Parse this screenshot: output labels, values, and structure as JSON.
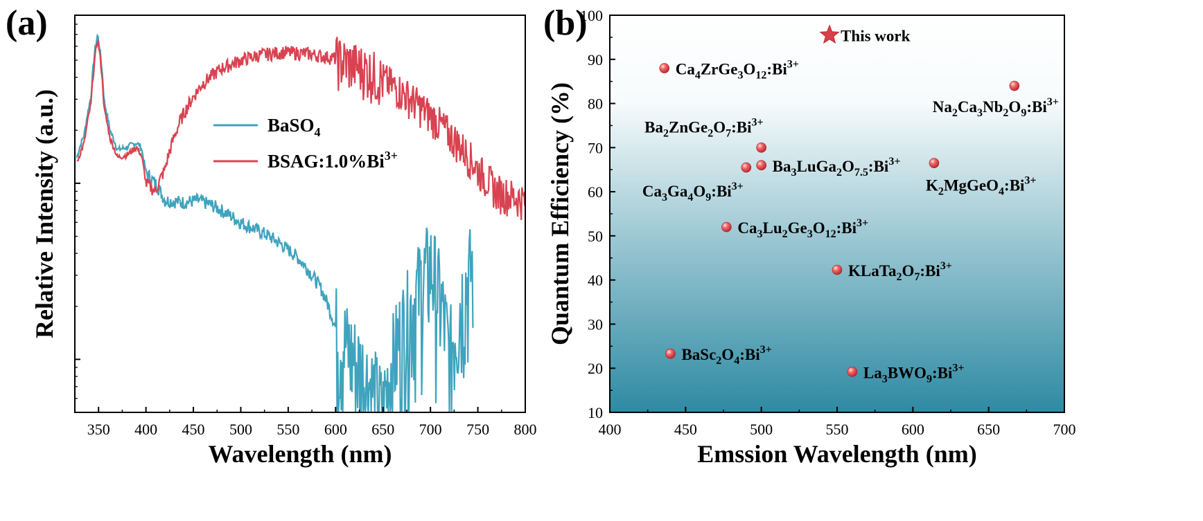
{
  "panels": {
    "a": {
      "letter": "(a)",
      "xlabel": "Wavelength (nm)",
      "ylabel": "Relative Intensity (a.u.)",
      "legend": [
        {
          "name": "BaSO",
          "sub": "4",
          "sup": "",
          "color": "#3fa3bd"
        },
        {
          "name": "BSAG:1.0%Bi",
          "sub": "",
          "sup": "3+",
          "color": "#d94351"
        }
      ]
    },
    "b": {
      "letter": "(b)",
      "xlabel": "Emssion Wavelength (nm)",
      "ylabel": "Quantum Efficiency (%)"
    }
  },
  "chart_data": [
    {
      "type": "line",
      "xlabel": "Wavelength (nm)",
      "ylabel": "Relative Intensity (a.u.)",
      "xlim": [
        325,
        800
      ],
      "ylim": [
        0,
        10
      ],
      "y_scale": "log",
      "y_tick_labels": false,
      "x_ticks": [
        350,
        400,
        450,
        500,
        550,
        600,
        650,
        700,
        750,
        800
      ],
      "grid": false,
      "legend_position": "top-right",
      "series": [
        {
          "name": "BaSO4",
          "color": "#3fa3bd",
          "x": [
            327,
            335,
            342,
            346,
            349,
            352,
            356,
            362,
            370,
            380,
            390,
            395,
            400,
            410,
            420,
            440,
            455,
            470,
            500,
            530,
            560,
            585,
            600,
            620,
            650,
            680,
            700,
            720,
            745
          ],
          "y": [
            1.4,
            1.9,
            3.1,
            5.6,
            7.0,
            5.4,
            2.9,
            2.0,
            1.55,
            1.6,
            1.7,
            1.6,
            1.15,
            1.0,
            0.8,
            0.78,
            0.8,
            0.75,
            0.6,
            0.5,
            0.38,
            0.25,
            0.15,
            0.1,
            0.05,
            0.2,
            0.35,
            0.1,
            0.35
          ]
        },
        {
          "name": "BSAG:1.0%Bi3+",
          "color": "#d94351",
          "x": [
            327,
            335,
            342,
            346,
            349,
            352,
            356,
            362,
            370,
            380,
            390,
            395,
            400,
            410,
            420,
            440,
            460,
            480,
            500,
            520,
            545,
            570,
            600,
            630,
            660,
            690,
            720,
            750,
            770,
            800
          ],
          "y": [
            1.3,
            1.7,
            2.8,
            5.0,
            6.6,
            5.0,
            2.6,
            1.8,
            1.4,
            1.45,
            1.6,
            1.45,
            1.0,
            0.9,
            1.2,
            2.5,
            3.7,
            4.5,
            5.0,
            5.35,
            5.55,
            5.45,
            5.1,
            4.5,
            3.6,
            2.7,
            1.9,
            1.2,
            0.9,
            0.8
          ]
        }
      ]
    },
    {
      "type": "scatter",
      "xlabel": "Emssion Wavelength (nm)",
      "ylabel": "Quantum Efficiency (%)",
      "xlim": [
        400,
        700
      ],
      "ylim": [
        10,
        100
      ],
      "x_ticks": [
        400,
        450,
        500,
        550,
        600,
        650,
        700
      ],
      "y_ticks": [
        10,
        20,
        30,
        40,
        50,
        60,
        70,
        80,
        90,
        100
      ],
      "grid": false,
      "background": "gradient white (top) to teal (bottom)",
      "points": [
        {
          "label": "This work",
          "label_parts": [
            [
              "This work",
              "n"
            ]
          ],
          "x": 545,
          "y": 95.5,
          "marker": "star",
          "label_side": "right"
        },
        {
          "label": "Ca4ZrGe3O12:Bi3+",
          "label_parts": [
            [
              "Ca",
              "n"
            ],
            [
              "4",
              "sub"
            ],
            [
              "ZrGe",
              "n"
            ],
            [
              "3",
              "sub"
            ],
            [
              "O",
              "n"
            ],
            [
              "12",
              "sub"
            ],
            [
              ":Bi",
              "n"
            ],
            [
              "3+",
              "sup"
            ]
          ],
          "x": 436,
          "y": 88,
          "marker": "sphere",
          "label_side": "right"
        },
        {
          "label": "Na2Ca3Nb2O9:Bi3+",
          "label_parts": [
            [
              "Na",
              "n"
            ],
            [
              "2",
              "sub"
            ],
            [
              "Ca",
              "n"
            ],
            [
              "3",
              "sub"
            ],
            [
              "Nb",
              "n"
            ],
            [
              "2",
              "sub"
            ],
            [
              "O",
              "n"
            ],
            [
              "9",
              "sub"
            ],
            [
              ":Bi",
              "n"
            ],
            [
              "3+",
              "sup"
            ]
          ],
          "x": 667,
          "y": 84,
          "marker": "sphere",
          "label_side": "below-left"
        },
        {
          "label": "Ba2ZnGe2O7:Bi3+",
          "label_parts": [
            [
              "Ba",
              "n"
            ],
            [
              "2",
              "sub"
            ],
            [
              "ZnGe",
              "n"
            ],
            [
              "2",
              "sub"
            ],
            [
              "O",
              "n"
            ],
            [
              "7",
              "sub"
            ],
            [
              ":Bi",
              "n"
            ],
            [
              "3+",
              "sup"
            ]
          ],
          "x": 500,
          "y": 70,
          "marker": "sphere",
          "label_side": "above-left"
        },
        {
          "label": "Ba3LuGa2O7.5:Bi3+",
          "label_parts": [
            [
              "Ba",
              "n"
            ],
            [
              "3",
              "sub"
            ],
            [
              "LuGa",
              "n"
            ],
            [
              "2",
              "sub"
            ],
            [
              "O",
              "n"
            ],
            [
              "7.5",
              "sub"
            ],
            [
              ":Bi",
              "n"
            ],
            [
              "3+",
              "sup"
            ]
          ],
          "x": 500,
          "y": 66,
          "marker": "sphere",
          "label_side": "right"
        },
        {
          "label": "Ca3Ga4O9:Bi3+",
          "label_parts": [
            [
              "Ca",
              "n"
            ],
            [
              "3",
              "sub"
            ],
            [
              "Ga",
              "n"
            ],
            [
              "4",
              "sub"
            ],
            [
              "O",
              "n"
            ],
            [
              "9",
              "sub"
            ],
            [
              ":Bi",
              "n"
            ],
            [
              "3+",
              "sup"
            ]
          ],
          "x": 490,
          "y": 65.5,
          "marker": "sphere",
          "label_side": "below-left"
        },
        {
          "label": "K2MgGeO4:Bi3+",
          "label_parts": [
            [
              "K",
              "n"
            ],
            [
              "2",
              "sub"
            ],
            [
              "MgGeO",
              "n"
            ],
            [
              "4",
              "sub"
            ],
            [
              ":Bi",
              "n"
            ],
            [
              "3+",
              "sup"
            ]
          ],
          "x": 614,
          "y": 66.5,
          "marker": "sphere",
          "label_side": "below-right"
        },
        {
          "label": "Ca3Lu2Ge3O12:Bi3+",
          "label_parts": [
            [
              "Ca",
              "n"
            ],
            [
              "3",
              "sub"
            ],
            [
              "Lu",
              "n"
            ],
            [
              "2",
              "sub"
            ],
            [
              "Ge",
              "n"
            ],
            [
              "3",
              "sub"
            ],
            [
              "O",
              "n"
            ],
            [
              "12",
              "sub"
            ],
            [
              ":Bi",
              "n"
            ],
            [
              "3+",
              "sup"
            ]
          ],
          "x": 477,
          "y": 52,
          "marker": "sphere",
          "label_side": "right"
        },
        {
          "label": "KLaTa2O7:Bi3+",
          "label_parts": [
            [
              "KLaTa",
              "n"
            ],
            [
              "2",
              "sub"
            ],
            [
              "O",
              "n"
            ],
            [
              "7",
              "sub"
            ],
            [
              ":Bi",
              "n"
            ],
            [
              "3+",
              "sup"
            ]
          ],
          "x": 550,
          "y": 42.3,
          "marker": "sphere",
          "label_side": "right"
        },
        {
          "label": "BaSc2O4:Bi3+",
          "label_parts": [
            [
              "BaSc",
              "n"
            ],
            [
              "2",
              "sub"
            ],
            [
              "O",
              "n"
            ],
            [
              "4",
              "sub"
            ],
            [
              ":Bi",
              "n"
            ],
            [
              "3+",
              "sup"
            ]
          ],
          "x": 440,
          "y": 23.3,
          "marker": "sphere",
          "label_side": "right"
        },
        {
          "label": "La3BWO9:Bi3+",
          "label_parts": [
            [
              "La",
              "n"
            ],
            [
              "3",
              "sub"
            ],
            [
              "BWO",
              "n"
            ],
            [
              "9",
              "sub"
            ],
            [
              ":Bi",
              "n"
            ],
            [
              "3+",
              "sup"
            ]
          ],
          "x": 560,
          "y": 19.2,
          "marker": "sphere",
          "label_side": "right"
        }
      ]
    }
  ]
}
